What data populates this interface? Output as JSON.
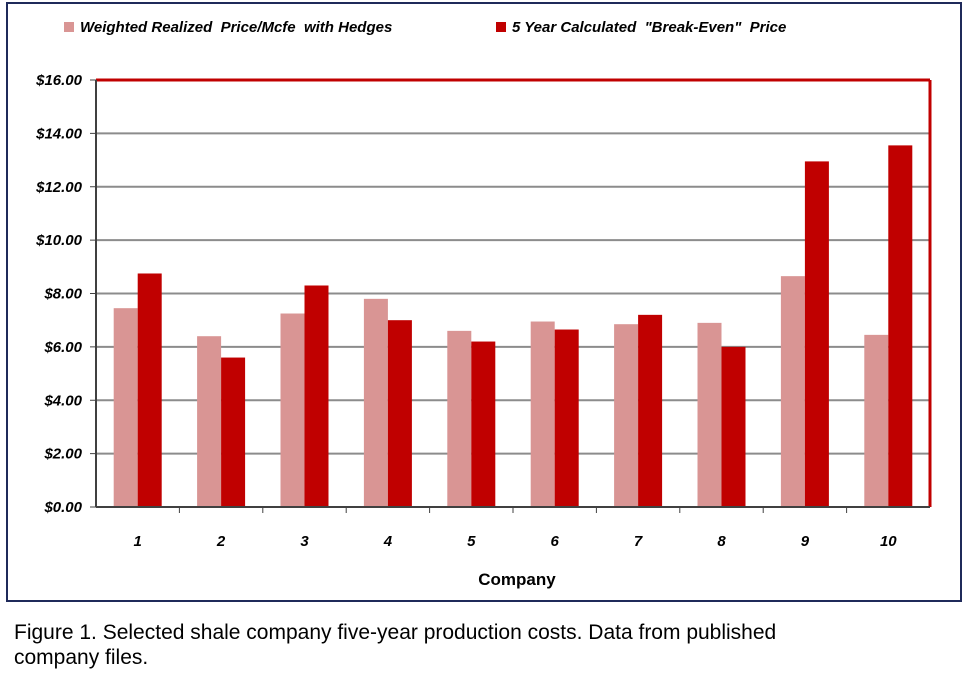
{
  "chart_data": {
    "type": "bar",
    "xlabel": "Company",
    "ylabel": "",
    "ylim": [
      0,
      16
    ],
    "yticks": [
      "$0.00",
      "$2.00",
      "$4.00",
      "$6.00",
      "$8.00",
      "$10.00",
      "$12.00",
      "$14.00",
      "$16.00"
    ],
    "categories": [
      "1",
      "2",
      "3",
      "4",
      "5",
      "6",
      "7",
      "8",
      "9",
      "10"
    ],
    "grid": true,
    "legend": "top",
    "series": [
      {
        "name": "Weighted Realized  Price/Mcfe  with Hedges",
        "color": "#d99594",
        "values": [
          7.45,
          6.4,
          7.25,
          7.8,
          6.6,
          6.95,
          6.85,
          6.9,
          8.65,
          6.45
        ]
      },
      {
        "name": "5 Year Calculated  \"Break-Even\"  Price",
        "color": "#c00000",
        "values": [
          8.75,
          5.6,
          8.3,
          7.0,
          6.2,
          6.65,
          7.2,
          6.0,
          12.95,
          13.55
        ]
      }
    ]
  },
  "caption": {
    "line1": "Figure 1.  Selected shale company five-year production costs.  Data from published",
    "line2": "company files."
  }
}
